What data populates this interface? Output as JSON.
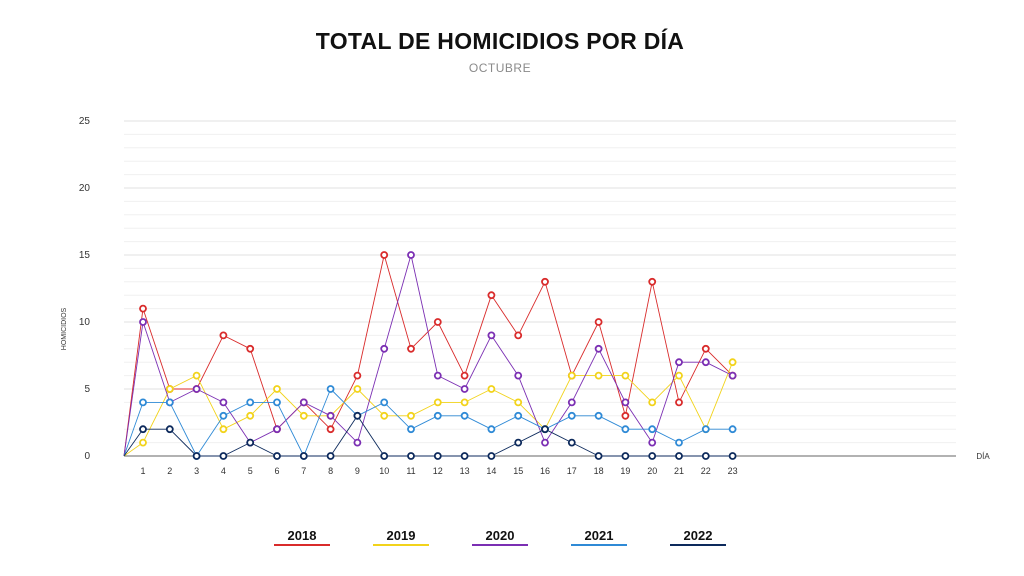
{
  "title": "TOTAL DE HOMICIDIOS POR DÍA",
  "subtitle": "OCTUBRE",
  "chart_data": {
    "type": "line",
    "xlabel": "DÍA",
    "ylabel": "HOMICIDIOS",
    "ylim": [
      0,
      25
    ],
    "yticks": [
      0,
      5,
      10,
      15,
      20,
      25
    ],
    "x": [
      1,
      2,
      3,
      4,
      5,
      6,
      7,
      8,
      9,
      10,
      11,
      12,
      13,
      14,
      15,
      16,
      17,
      18,
      19,
      20,
      21,
      22,
      23
    ],
    "grid": true,
    "legend_position": "bottom",
    "series": [
      {
        "name": "2018",
        "color": "#d92b2b",
        "values": [
          11,
          5,
          5,
          9,
          8,
          2,
          4,
          2,
          6,
          15,
          8,
          10,
          6,
          12,
          9,
          13,
          6,
          10,
          3,
          13,
          4,
          8,
          6
        ]
      },
      {
        "name": "2019",
        "color": "#f2d31b",
        "values": [
          1,
          5,
          6,
          2,
          3,
          5,
          3,
          3,
          5,
          3,
          3,
          4,
          4,
          5,
          4,
          2,
          6,
          6,
          6,
          4,
          6,
          2,
          7
        ]
      },
      {
        "name": "2020",
        "color": "#7b2fb3",
        "values": [
          10,
          4,
          5,
          4,
          1,
          2,
          4,
          3,
          1,
          8,
          15,
          6,
          5,
          9,
          6,
          1,
          4,
          8,
          4,
          1,
          7,
          7,
          6
        ]
      },
      {
        "name": "2021",
        "color": "#2f8ad6",
        "values": [
          4,
          4,
          0,
          3,
          4,
          4,
          0,
          5,
          3,
          4,
          2,
          3,
          3,
          2,
          3,
          2,
          3,
          3,
          2,
          2,
          1,
          2,
          2
        ]
      },
      {
        "name": "2022",
        "color": "#0d2a5c",
        "values": [
          2,
          2,
          0,
          0,
          1,
          0,
          0,
          0,
          3,
          0,
          0,
          0,
          0,
          0,
          1,
          2,
          1,
          0,
          0,
          0,
          0,
          0,
          0
        ]
      }
    ]
  }
}
